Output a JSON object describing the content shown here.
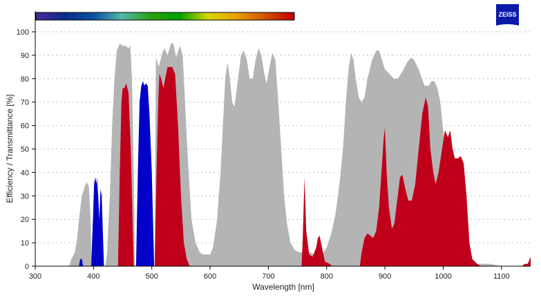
{
  "logo": {
    "text": "ZEISS",
    "color": "#0a1aa8"
  },
  "chart_data": {
    "type": "area",
    "xlabel": "Wavelength [nm]",
    "ylabel": "Efficiency / Transmittance [%]",
    "xlim": [
      300,
      1150
    ],
    "ylim": [
      0,
      100
    ],
    "xticks": [
      300,
      400,
      500,
      600,
      700,
      800,
      900,
      1000,
      1100
    ],
    "yticks": [
      0,
      10,
      20,
      30,
      40,
      50,
      60,
      70,
      80,
      90,
      100
    ],
    "grid": "horizontal dotted",
    "spectrum_bar": {
      "range_nm": [
        380,
        750
      ],
      "colors": [
        "#4b2a9a",
        "#0a2a8a",
        "#0a50a0",
        "#50b8a8",
        "#2aa010",
        "#00a000",
        "#d8d800",
        "#e8a000",
        "#d05000",
        "#c00000"
      ]
    },
    "series": [
      {
        "color": "#b4b4b4",
        "points": [
          [
            300,
            0
          ],
          [
            358,
            0
          ],
          [
            362,
            3
          ],
          [
            368,
            6
          ],
          [
            372,
            12
          ],
          [
            376,
            22
          ],
          [
            380,
            30
          ],
          [
            385,
            34
          ],
          [
            388,
            36
          ],
          [
            392,
            34
          ],
          [
            395,
            20
          ],
          [
            397,
            0
          ],
          [
            420,
            0
          ],
          [
            423,
            5
          ],
          [
            428,
            30
          ],
          [
            432,
            60
          ],
          [
            436,
            80
          ],
          [
            440,
            92
          ],
          [
            445,
            95
          ],
          [
            450,
            94
          ],
          [
            455,
            94
          ],
          [
            460,
            93
          ],
          [
            463,
            94
          ],
          [
            466,
            80
          ],
          [
            469,
            40
          ],
          [
            471,
            0
          ],
          [
            505,
            0
          ],
          [
            507,
            89
          ],
          [
            512,
            85
          ],
          [
            518,
            91
          ],
          [
            522,
            93
          ],
          [
            527,
            90
          ],
          [
            533,
            95
          ],
          [
            537,
            95
          ],
          [
            542,
            89
          ],
          [
            548,
            94
          ],
          [
            553,
            90
          ],
          [
            557,
            70
          ],
          [
            562,
            45
          ],
          [
            568,
            20
          ],
          [
            575,
            10
          ],
          [
            582,
            6
          ],
          [
            588,
            5
          ],
          [
            600,
            5
          ],
          [
            605,
            8
          ],
          [
            612,
            20
          ],
          [
            618,
            40
          ],
          [
            622,
            60
          ],
          [
            626,
            80
          ],
          [
            630,
            87
          ],
          [
            634,
            80
          ],
          [
            638,
            70
          ],
          [
            642,
            68
          ],
          [
            648,
            80
          ],
          [
            653,
            90
          ],
          [
            658,
            92
          ],
          [
            663,
            88
          ],
          [
            668,
            80
          ],
          [
            673,
            80
          ],
          [
            678,
            88
          ],
          [
            683,
            93
          ],
          [
            688,
            90
          ],
          [
            693,
            82
          ],
          [
            697,
            78
          ],
          [
            702,
            85
          ],
          [
            707,
            91
          ],
          [
            712,
            88
          ],
          [
            717,
            70
          ],
          [
            722,
            50
          ],
          [
            727,
            30
          ],
          [
            732,
            18
          ],
          [
            738,
            10
          ],
          [
            745,
            7
          ],
          [
            752,
            6
          ],
          [
            770,
            6
          ],
          [
            780,
            5
          ],
          [
            790,
            5
          ],
          [
            795,
            6
          ],
          [
            800,
            8
          ],
          [
            808,
            14
          ],
          [
            815,
            22
          ],
          [
            822,
            35
          ],
          [
            828,
            50
          ],
          [
            833,
            70
          ],
          [
            838,
            85
          ],
          [
            842,
            91
          ],
          [
            846,
            88
          ],
          [
            850,
            80
          ],
          [
            855,
            72
          ],
          [
            860,
            70
          ],
          [
            865,
            72
          ],
          [
            870,
            80
          ],
          [
            878,
            88
          ],
          [
            885,
            92
          ],
          [
            890,
            92
          ],
          [
            895,
            88
          ],
          [
            900,
            84
          ],
          [
            908,
            82
          ],
          [
            915,
            80
          ],
          [
            922,
            80
          ],
          [
            930,
            83
          ],
          [
            938,
            87
          ],
          [
            945,
            89
          ],
          [
            950,
            88
          ],
          [
            958,
            84
          ],
          [
            962,
            81
          ],
          [
            968,
            77
          ],
          [
            975,
            77
          ],
          [
            980,
            79
          ],
          [
            985,
            79
          ],
          [
            990,
            76
          ],
          [
            995,
            70
          ],
          [
            1000,
            58
          ],
          [
            1005,
            45
          ],
          [
            1010,
            35
          ],
          [
            1015,
            22
          ],
          [
            1020,
            14
          ],
          [
            1025,
            8
          ],
          [
            1030,
            5
          ],
          [
            1040,
            3
          ],
          [
            1050,
            2
          ],
          [
            1060,
            1
          ],
          [
            1080,
            1
          ],
          [
            1090,
            0.5
          ],
          [
            1100,
            0
          ],
          [
            1150,
            0
          ]
        ]
      },
      {
        "color": "#0000c8",
        "points": [
          [
            300,
            0
          ],
          [
            375,
            0
          ],
          [
            377,
            3
          ],
          [
            380,
            3
          ],
          [
            382,
            0
          ],
          [
            396,
            0
          ],
          [
            399,
            20
          ],
          [
            401,
            35
          ],
          [
            403,
            38
          ],
          [
            405,
            35
          ],
          [
            406,
            38
          ],
          [
            408,
            30
          ],
          [
            410,
            20
          ],
          [
            412,
            33
          ],
          [
            414,
            30
          ],
          [
            416,
            15
          ],
          [
            418,
            0
          ],
          [
            473,
            0
          ],
          [
            476,
            40
          ],
          [
            479,
            70
          ],
          [
            482,
            77
          ],
          [
            485,
            79
          ],
          [
            487,
            77
          ],
          [
            490,
            78
          ],
          [
            493,
            77
          ],
          [
            496,
            65
          ],
          [
            500,
            40
          ],
          [
            502,
            20
          ],
          [
            504,
            0
          ],
          [
            1150,
            0
          ]
        ]
      },
      {
        "color": "#c0001a",
        "points": [
          [
            300,
            0
          ],
          [
            442,
            0
          ],
          [
            445,
            40
          ],
          [
            448,
            70
          ],
          [
            450,
            76
          ],
          [
            453,
            76
          ],
          [
            456,
            78
          ],
          [
            460,
            74
          ],
          [
            464,
            50
          ],
          [
            467,
            20
          ],
          [
            469,
            0
          ],
          [
            505,
            0
          ],
          [
            508,
            40
          ],
          [
            511,
            70
          ],
          [
            513,
            82
          ],
          [
            516,
            80
          ],
          [
            520,
            76
          ],
          [
            523,
            80
          ],
          [
            527,
            85
          ],
          [
            535,
            85
          ],
          [
            540,
            82
          ],
          [
            545,
            60
          ],
          [
            550,
            30
          ],
          [
            555,
            10
          ],
          [
            560,
            3
          ],
          [
            565,
            0
          ],
          [
            757,
            0
          ],
          [
            759,
            12
          ],
          [
            762,
            38
          ],
          [
            765,
            15
          ],
          [
            770,
            5
          ],
          [
            776,
            4
          ],
          [
            782,
            8
          ],
          [
            785,
            12
          ],
          [
            788,
            13
          ],
          [
            792,
            8
          ],
          [
            797,
            2
          ],
          [
            805,
            1
          ],
          [
            810,
            0
          ],
          [
            857,
            0
          ],
          [
            860,
            6
          ],
          [
            865,
            12
          ],
          [
            870,
            14
          ],
          [
            875,
            13
          ],
          [
            880,
            12
          ],
          [
            885,
            15
          ],
          [
            890,
            25
          ],
          [
            894,
            40
          ],
          [
            898,
            55
          ],
          [
            900,
            59
          ],
          [
            903,
            40
          ],
          [
            907,
            25
          ],
          [
            912,
            16
          ],
          [
            916,
            18
          ],
          [
            922,
            30
          ],
          [
            926,
            38
          ],
          [
            930,
            39
          ],
          [
            935,
            33
          ],
          [
            940,
            28
          ],
          [
            946,
            28
          ],
          [
            952,
            35
          ],
          [
            958,
            50
          ],
          [
            964,
            65
          ],
          [
            970,
            72
          ],
          [
            974,
            68
          ],
          [
            978,
            50
          ],
          [
            983,
            40
          ],
          [
            987,
            35
          ],
          [
            992,
            40
          ],
          [
            998,
            50
          ],
          [
            1003,
            58
          ],
          [
            1008,
            55
          ],
          [
            1012,
            58
          ],
          [
            1016,
            50
          ],
          [
            1020,
            46
          ],
          [
            1025,
            46
          ],
          [
            1030,
            47
          ],
          [
            1035,
            44
          ],
          [
            1040,
            30
          ],
          [
            1045,
            10
          ],
          [
            1050,
            3
          ],
          [
            1058,
            1
          ],
          [
            1065,
            0
          ],
          [
            1135,
            0
          ],
          [
            1140,
            1
          ],
          [
            1145,
            1
          ],
          [
            1150,
            4
          ]
        ]
      }
    ]
  }
}
